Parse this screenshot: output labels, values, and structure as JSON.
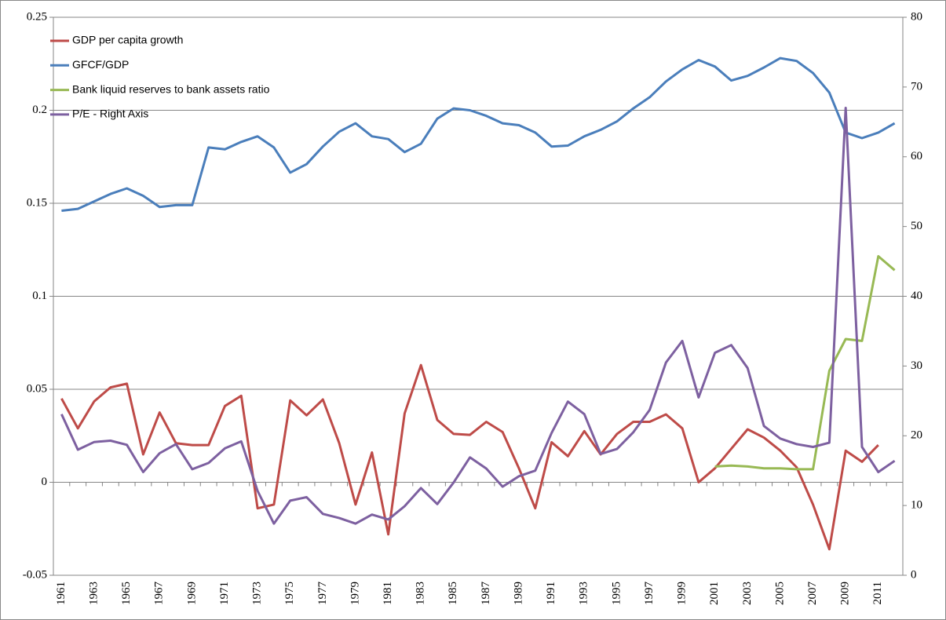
{
  "chart_data": {
    "type": "line",
    "categories": [
      "1961",
      null,
      "1963",
      null,
      "1965",
      null,
      "1967",
      null,
      "1969",
      null,
      "1971",
      null,
      "1973",
      null,
      "1975",
      null,
      "1977",
      null,
      "1979",
      null,
      "1981",
      null,
      "1983",
      null,
      "1985",
      null,
      "1987",
      null,
      "1989",
      null,
      "1991",
      null,
      "1993",
      null,
      "1995",
      null,
      "1997",
      null,
      "1999",
      null,
      "2001",
      null,
      "2003",
      null,
      "2005",
      null,
      "2007",
      null,
      "2009",
      null,
      "2011",
      null
    ],
    "series": [
      {
        "name": "GDP per capita growth",
        "color": "#be4b48",
        "values": [
          0.045,
          0.029,
          0.0435,
          0.051,
          0.053,
          0.015,
          0.0375,
          0.021,
          0.02,
          0.02,
          0.041,
          0.0465,
          -0.014,
          -0.012,
          0.044,
          0.036,
          0.0445,
          0.021,
          -0.012,
          0.016,
          -0.028,
          0.037,
          0.063,
          0.0335,
          0.026,
          0.0255,
          0.0325,
          0.027,
          0.0075,
          -0.014,
          0.0215,
          0.014,
          0.0275,
          0.015,
          0.026,
          0.0325,
          0.0325,
          0.0365,
          0.029,
          0.0,
          0.0075,
          0.018,
          0.0285,
          0.024,
          0.017,
          0.008,
          -0.012,
          -0.036,
          0.017,
          0.011,
          0.02,
          null
        ]
      },
      {
        "name": "GFCF/GDP",
        "color": "#4a7ebb",
        "values": [
          0.146,
          0.147,
          0.151,
          0.155,
          0.158,
          0.154,
          0.148,
          0.149,
          0.149,
          0.18,
          0.179,
          0.183,
          0.186,
          0.18,
          0.1665,
          0.171,
          0.1805,
          0.1885,
          0.193,
          0.186,
          0.1845,
          0.1775,
          0.182,
          0.1955,
          0.201,
          0.2,
          0.197,
          0.193,
          0.192,
          0.188,
          0.1805,
          0.181,
          0.186,
          0.1895,
          0.194,
          0.201,
          0.207,
          0.2155,
          0.222,
          0.227,
          0.2235,
          0.216,
          0.2185,
          0.223,
          0.228,
          0.2265,
          0.22,
          0.2095,
          0.188,
          0.185,
          0.188,
          0.193
        ]
      },
      {
        "name": "Bank liquid reserves to bank assets ratio",
        "color": "#98b954",
        "values": [
          null,
          null,
          null,
          null,
          null,
          null,
          null,
          null,
          null,
          null,
          null,
          null,
          null,
          null,
          null,
          null,
          null,
          null,
          null,
          null,
          null,
          null,
          null,
          null,
          null,
          null,
          null,
          null,
          null,
          null,
          null,
          null,
          null,
          null,
          null,
          null,
          null,
          null,
          null,
          null,
          0.0085,
          0.009,
          0.0085,
          0.0075,
          0.0075,
          0.007,
          0.007,
          0.06,
          0.077,
          0.076,
          0.1215,
          0.114
        ]
      },
      {
        "name": "P/E - Right Axis",
        "color": "#7d60a0",
        "axis": "y2",
        "values": [
          23.1,
          18.0,
          19.1,
          19.3,
          18.7,
          14.8,
          17.5,
          18.8,
          15.2,
          16.1,
          18.2,
          19.2,
          12.1,
          7.4,
          10.7,
          11.2,
          8.8,
          8.2,
          7.4,
          8.7,
          8.0,
          9.9,
          12.5,
          10.2,
          13.3,
          16.9,
          15.3,
          12.7,
          14.2,
          15.0,
          20.4,
          24.9,
          23.1,
          17.4,
          18.1,
          20.5,
          23.7,
          30.5,
          33.6,
          25.5,
          31.9,
          33.0,
          29.7,
          21.4,
          19.6,
          18.8,
          18.4,
          19.0,
          67.0,
          18.4,
          14.8,
          16.4
        ]
      }
    ],
    "ylim": [
      -0.05,
      0.25
    ],
    "yticks": [
      -0.05,
      0,
      0.05,
      0.1,
      0.15,
      0.2,
      0.25
    ],
    "y2lim": [
      0,
      80
    ],
    "y2ticks": [
      0,
      10,
      20,
      30,
      40,
      50,
      60,
      70,
      80
    ],
    "grid": true,
    "legend": "upper left"
  }
}
